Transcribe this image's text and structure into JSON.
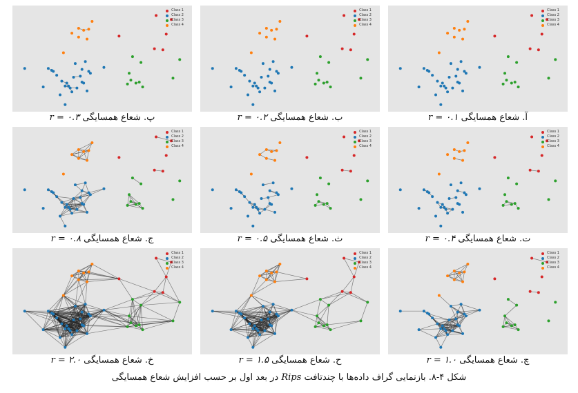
{
  "legend": [
    {
      "label": "Class 1",
      "color": "#d62728"
    },
    {
      "label": "Class 2",
      "color": "#1f77b4"
    },
    {
      "label": "Class 3",
      "color": "#2ca02c"
    },
    {
      "label": "Class 4",
      "color": "#ff7f0e"
    }
  ],
  "panels": [
    {
      "id": "p3",
      "title": "پ. شعاع همسایگی",
      "r": "r = ۰.۳",
      "radius": 0.3
    },
    {
      "id": "p2",
      "title": "ب. شعاع همسایگی",
      "r": "r = ۰.۲",
      "radius": 0.2
    },
    {
      "id": "p1",
      "title": "آ. شعاع همسایگی",
      "r": "r = ۰.۱",
      "radius": 0.1
    },
    {
      "id": "p8",
      "title": "ج. شعاع همسایگی",
      "r": "r = ۰.۸",
      "radius": 0.8
    },
    {
      "id": "p5",
      "title": "ث. شعاع همسایگی",
      "r": "r = ۰.۵",
      "radius": 0.5
    },
    {
      "id": "p4",
      "title": "ت. شعاع همسایگی",
      "r": "r = ۰.۴",
      "radius": 0.4
    },
    {
      "id": "p20",
      "title": "خ. شعاع همسایگی",
      "r": "r = ۲.۰",
      "radius": 2.0
    },
    {
      "id": "p15",
      "title": "ح. شعاع همسایگی",
      "r": "r = ۱.۵",
      "radius": 1.5
    },
    {
      "id": "p10",
      "title": "چ. شعاع همسایگی",
      "r": "r = ۱.۰",
      "radius": 1.0
    }
  ],
  "figure_caption": {
    "prefix": "شکل ۴-۸. بازنمایی گراف داده‌ها با چندتافت",
    "term": "Rips",
    "suffix": "در بعد اول بر حسب افزایش شعاع همسایگی"
  },
  "chart_data": {
    "type": "scatter",
    "series": [
      {
        "name": "Class 1",
        "color": "#d62728",
        "points": [
          [
            0.82,
            0.94
          ],
          [
            0.91,
            0.9
          ],
          [
            0.6,
            0.73
          ],
          [
            0.88,
            0.75
          ],
          [
            0.81,
            0.6
          ],
          [
            0.86,
            0.59
          ]
        ]
      },
      {
        "name": "Class 2",
        "color": "#1f77b4",
        "points": [
          [
            0.04,
            0.4
          ],
          [
            0.15,
            0.21
          ],
          [
            0.18,
            0.4
          ],
          [
            0.2,
            0.38
          ],
          [
            0.21,
            0.37
          ],
          [
            0.23,
            0.33
          ],
          [
            0.25,
            0.13
          ],
          [
            0.26,
            0.27
          ],
          [
            0.28,
            0.22
          ],
          [
            0.29,
            0.25
          ],
          [
            0.3,
            0.22
          ],
          [
            0.31,
            0.2
          ],
          [
            0.32,
            0.16
          ],
          [
            0.33,
            0.31
          ],
          [
            0.34,
            0.45
          ],
          [
            0.35,
            0.2
          ],
          [
            0.37,
            0.32
          ],
          [
            0.38,
            0.39
          ],
          [
            0.38,
            0.26
          ],
          [
            0.39,
            0.25
          ],
          [
            0.4,
            0.47
          ],
          [
            0.41,
            0.17
          ],
          [
            0.42,
            0.37
          ],
          [
            0.43,
            0.35
          ],
          [
            0.51,
            0.41
          ],
          [
            0.28,
            0.03
          ]
        ]
      },
      {
        "name": "Class 3",
        "color": "#2ca02c",
        "points": [
          [
            0.68,
            0.52
          ],
          [
            0.66,
            0.35
          ],
          [
            0.73,
            0.46
          ],
          [
            0.65,
            0.24
          ],
          [
            0.67,
            0.28
          ],
          [
            0.7,
            0.25
          ],
          [
            0.72,
            0.26
          ],
          [
            0.74,
            0.21
          ],
          [
            0.92,
            0.3
          ],
          [
            0.96,
            0.49
          ]
        ]
      },
      {
        "name": "Class 4",
        "color": "#ff7f0e",
        "points": [
          [
            0.32,
            0.76
          ],
          [
            0.36,
            0.81
          ],
          [
            0.39,
            0.79
          ],
          [
            0.42,
            0.8
          ],
          [
            0.44,
            0.88
          ],
          [
            0.41,
            0.7
          ],
          [
            0.36,
            0.72
          ],
          [
            0.27,
            0.56
          ]
        ]
      }
    ],
    "xlim": [
      0,
      1
    ],
    "ylim": [
      0,
      1
    ]
  }
}
